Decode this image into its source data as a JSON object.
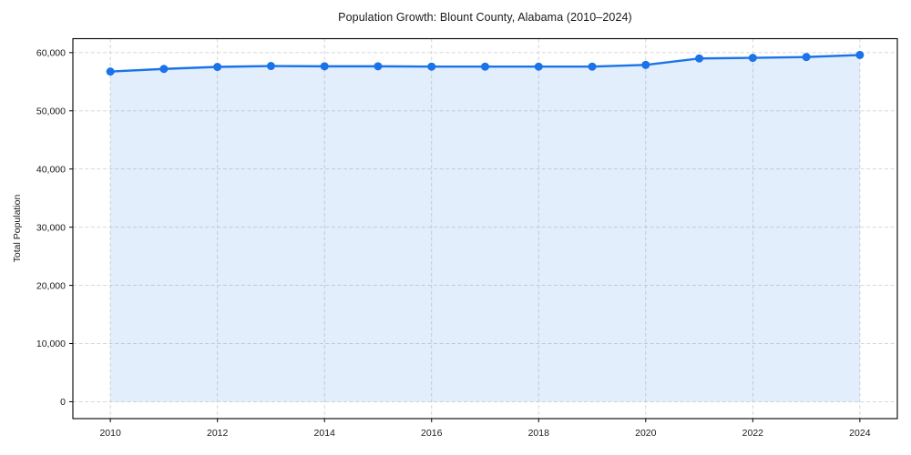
{
  "chart_data": {
    "type": "area",
    "title": "Population Growth: Blount County, Alabama (2010–2024)",
    "xlabel": "",
    "ylabel": "Total Population",
    "series_name": "Total Population",
    "x": [
      2010,
      2011,
      2012,
      2013,
      2014,
      2015,
      2016,
      2017,
      2018,
      2019,
      2020,
      2021,
      2022,
      2023,
      2024
    ],
    "values": [
      56750,
      57200,
      57550,
      57700,
      57650,
      57650,
      57600,
      57600,
      57600,
      57600,
      57900,
      59000,
      59100,
      59250,
      59600
    ],
    "xlim": [
      2009.3,
      2024.7
    ],
    "ylim": [
      -2900,
      62400
    ],
    "xticks": {
      "values": [
        2010,
        2012,
        2014,
        2016,
        2018,
        2020,
        2022,
        2024
      ],
      "labels": [
        "2010",
        "2012",
        "2014",
        "2016",
        "2018",
        "2020",
        "2022",
        "2024"
      ]
    },
    "yticks": {
      "values": [
        0,
        10000,
        20000,
        30000,
        40000,
        50000,
        60000
      ],
      "labels": [
        "0",
        "10,000",
        "20,000",
        "30,000",
        "40,000",
        "50,000",
        "60,000"
      ]
    },
    "grid": true,
    "grid_style": "dashed",
    "legend": false,
    "area_baseline": 0,
    "colors": {
      "line": "#1a73e8",
      "marker": "#1a73e8",
      "fill": "rgba(26,115,232,0.12)",
      "grid": "#d2d2d2",
      "axis": "#000000",
      "background": "#ffffff",
      "text": "#1a1a1a"
    }
  }
}
